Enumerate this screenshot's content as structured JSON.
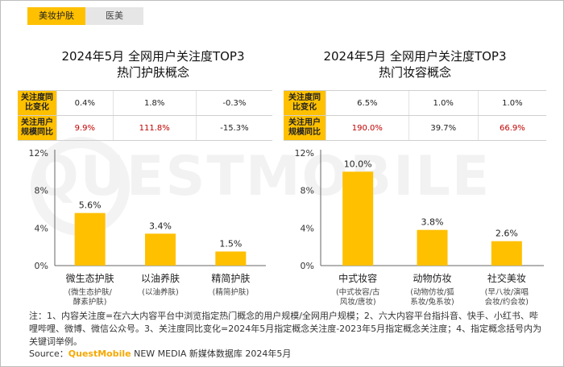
{
  "tabs": [
    "美妆护肤",
    "医美"
  ],
  "panels": [
    {
      "title_line1": "2024年5月 全网用户关注度TOP3",
      "title_line2": "热门护肤概念",
      "row1_label": "关注度同比变化",
      "row1_values": [
        "0.4%",
        "1.8%",
        "-0.3%"
      ],
      "row2_label": "关注用户规模同比",
      "row2_values": [
        "9.9%",
        "111.8%",
        "-15.3%"
      ]
    },
    {
      "title_line1": "2024年5月 全网用户关注度TOP3",
      "title_line2": "热门妆容概念",
      "row1_label": "关注度同比变化",
      "row1_values": [
        "6.5%",
        "1.0%",
        "1.0%"
      ],
      "row2_label": "关注用户规模同比",
      "row2_values": [
        "190.0%",
        "39.7%",
        "66.9%"
      ]
    }
  ],
  "chart_data": [
    {
      "type": "bar",
      "categories": [
        "微生态护肤",
        "以油养肤",
        "精简护肤"
      ],
      "sublabels": [
        "(微生态护肤/酵素护肤)",
        "(以油养肤)",
        "(精简护肤)"
      ],
      "values": [
        5.6,
        3.4,
        1.5
      ],
      "data_labels": [
        "5.6%",
        "3.4%",
        "1.5%"
      ],
      "ylim": [
        0,
        12
      ],
      "yticks": [
        "0%",
        "4%",
        "8%",
        "12%"
      ],
      "bar_color": "#FFC000"
    },
    {
      "type": "bar",
      "categories": [
        "中式妆容",
        "动物仿妆",
        "社交美妆"
      ],
      "sublabels": [
        "(中式妆容/古风妆/唐妆)",
        "(动物仿妆/狐系妆/兔系妆)",
        "(早八妆/演唱会妆/约会妆)"
      ],
      "values": [
        10.0,
        3.8,
        2.6
      ],
      "data_labels": [
        "10.0%",
        "3.8%",
        "2.6%"
      ],
      "ylim": [
        0,
        12
      ],
      "yticks": [
        "0%",
        "4%",
        "8%",
        "12%"
      ],
      "bar_color": "#FFC000"
    }
  ],
  "note": "注：1、内容关注度=在六大内容平台中浏览指定热门概念的用户规模/全网用户规模；2、六大内容平台指抖音、快手、小红书、哔哩哔哩、微博、微信公众号。3、关注度同比变化=2024年5月指定概念关注度-2023年5月指定概念关注度；4、指定概念括号内为关键词举例。",
  "source": {
    "prefix": "Source：",
    "brand": "QuestMobile",
    "rest": " NEW MEDIA 新媒体数据库 2024年5月"
  },
  "watermark": "QUESTMOBILE",
  "colors": {
    "accent": "#FFC000",
    "negative": "#C00000"
  }
}
